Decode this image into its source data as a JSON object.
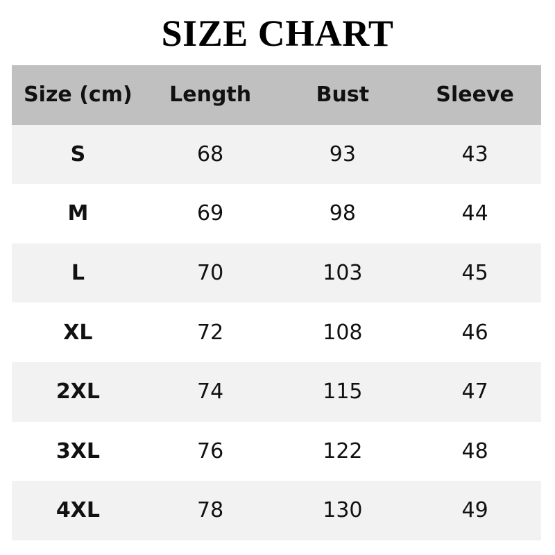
{
  "title": "SIZE CHART",
  "table": {
    "headers": [
      "Size (cm)",
      "Length",
      "Bust",
      "Sleeve"
    ],
    "rows": [
      [
        "S",
        "68",
        "93",
        "43"
      ],
      [
        "M",
        "69",
        "98",
        "44"
      ],
      [
        "L",
        "70",
        "103",
        "45"
      ],
      [
        "XL",
        "72",
        "108",
        "46"
      ],
      [
        "2XL",
        "74",
        "115",
        "47"
      ],
      [
        "3XL",
        "76",
        "122",
        "48"
      ],
      [
        "4XL",
        "78",
        "130",
        "49"
      ]
    ]
  },
  "colors": {
    "header_bg": "#c0c0c0",
    "stripe_bg": "#f2f2f2"
  }
}
